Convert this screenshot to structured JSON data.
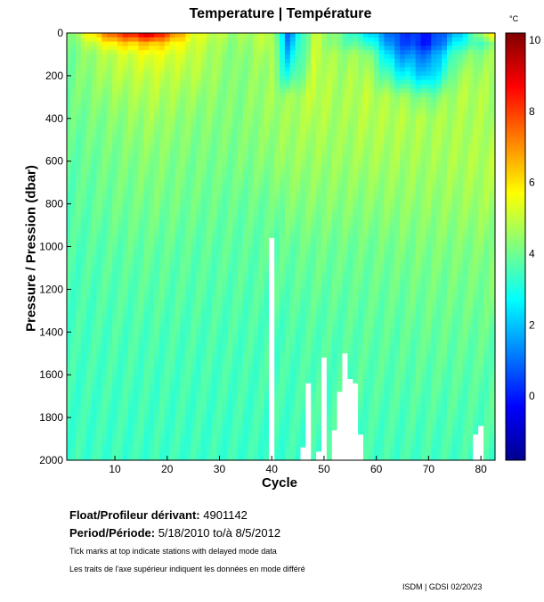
{
  "chart_data": {
    "type": "heatmap",
    "title": "Temperature | Température",
    "xlabel": "Cycle",
    "ylabel": "Pressure / Pression (dbar)",
    "colorbar_unit": "°C",
    "xlim": [
      0.8,
      82.7
    ],
    "ylim": [
      0,
      2000
    ],
    "clim": [
      -1.8,
      10.2
    ],
    "colormap": "jet",
    "xticks": [
      10,
      20,
      30,
      40,
      50,
      60,
      70,
      80
    ],
    "yticks": [
      0,
      200,
      400,
      600,
      800,
      1000,
      1200,
      1400,
      1600,
      1800,
      2000
    ],
    "cticks": [
      0,
      2,
      4,
      6,
      8,
      10
    ],
    "depths": [
      0,
      50,
      100,
      200,
      300,
      400,
      600,
      800,
      1000,
      1400,
      2000
    ],
    "profiles": [
      {
        "cycle": 1,
        "t": [
          4,
          4,
          4,
          4,
          4,
          3.9,
          3.8,
          3.7,
          3.6,
          3.5,
          3.4
        ]
      },
      {
        "cycle": 10,
        "t": [
          8,
          6,
          5,
          4.8,
          4.5,
          4.3,
          4.1,
          4,
          3.8,
          3.6,
          3.4
        ]
      },
      {
        "cycle": 17,
        "t": [
          9.5,
          6.5,
          5.5,
          5,
          4.8,
          4.6,
          4.3,
          4.1,
          3.9,
          3.6,
          3.4
        ]
      },
      {
        "cycle": 25,
        "t": [
          5.5,
          5.2,
          5,
          4.8,
          4.5,
          4.3,
          4.1,
          4,
          3.8,
          3.6,
          3.4
        ]
      },
      {
        "cycle": 33,
        "t": [
          4.5,
          4.3,
          4.2,
          4.2,
          4.2,
          4.2,
          4.1,
          3.9,
          3.8,
          3.6,
          3.4
        ]
      },
      {
        "cycle": 40,
        "t": [
          5,
          5,
          4.8,
          4.6,
          4.6,
          4.5,
          4.3,
          4.0,
          3.8,
          3.6,
          3.4
        ]
      },
      {
        "cycle": 43,
        "t": [
          1,
          1.5,
          2,
          3,
          4.5,
          4.6,
          4.5,
          4.2,
          3.9,
          3.6,
          3.4
        ]
      },
      {
        "cycle": 48,
        "t": [
          5,
          5,
          5,
          5,
          5,
          4.8,
          4.5,
          4.3,
          4.0,
          3.7,
          3.5
        ]
      },
      {
        "cycle": 53,
        "t": [
          4,
          4,
          4.5,
          4.6,
          4.6,
          4.6,
          4.5,
          4.3,
          4.0,
          3.7,
          3.5
        ]
      },
      {
        "cycle": 58,
        "t": [
          2.5,
          3.5,
          4.5,
          4.8,
          4.9,
          4.8,
          4.6,
          4.3,
          4.0,
          3.8,
          3.5
        ]
      },
      {
        "cycle": 64,
        "t": [
          0.5,
          0.8,
          1.5,
          3,
          4.6,
          4.8,
          4.6,
          4.4,
          4.1,
          3.8,
          3.5
        ]
      },
      {
        "cycle": 70,
        "t": [
          0,
          0,
          1,
          2,
          4,
          4.7,
          4.6,
          4.4,
          4.2,
          3.9,
          3.5
        ]
      },
      {
        "cycle": 76,
        "t": [
          2,
          3,
          4,
          4.6,
          4.8,
          4.7,
          4.7,
          4.5,
          4.2,
          3.9,
          3.5
        ]
      },
      {
        "cycle": 82,
        "t": [
          6,
          4,
          4.5,
          4.6,
          4.7,
          4.7,
          4.8,
          4.6,
          4.3,
          3.9,
          3.5
        ]
      }
    ],
    "missing_below": [
      {
        "cycle": 40,
        "p": 950
      },
      {
        "cycle": 46,
        "p": 1940
      },
      {
        "cycle": 47,
        "p": 1640
      },
      {
        "cycle": 49,
        "p": 1950
      },
      {
        "cycle": 50,
        "p": 1510
      },
      {
        "cycle": 52,
        "p": 1860
      },
      {
        "cycle": 53,
        "p": 1680
      },
      {
        "cycle": 54,
        "p": 1500
      },
      {
        "cycle": 55,
        "p": 1620
      },
      {
        "cycle": 56,
        "p": 1630
      },
      {
        "cycle": 57,
        "p": 1880
      },
      {
        "cycle": 79,
        "p": 1880
      },
      {
        "cycle": 80,
        "p": 1830
      }
    ]
  },
  "info": {
    "float_label": "Float/Profileur dérivant:",
    "float_id": "4901142",
    "period_label": "Period/Période:",
    "period_value": "5/18/2010  to/à  8/5/2012",
    "note_en": "Tick marks at top indicate stations with delayed mode data",
    "note_fr": "Les traits de l'axe supérieur indiquent les données en mode différé",
    "credit": "ISDM | GDSI  02/20/23"
  }
}
